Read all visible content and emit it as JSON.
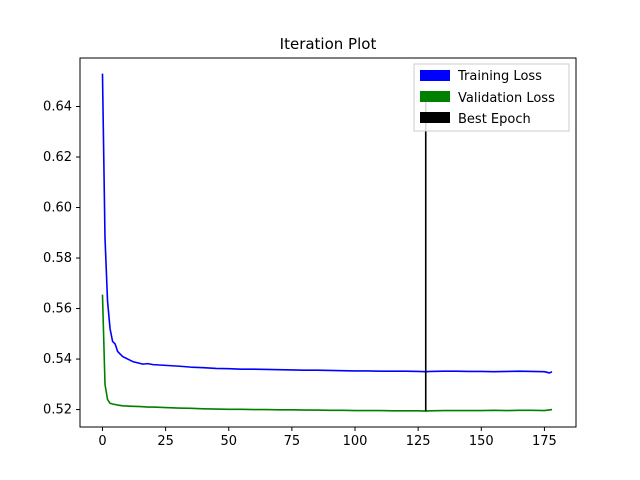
{
  "chart_data": {
    "type": "line",
    "title": "Iteration Plot",
    "xlabel": "",
    "ylabel": "",
    "xlim": [
      -8.9,
      187.5
    ],
    "ylim": [
      0.5131,
      0.6592
    ],
    "xticks": [
      0,
      25,
      50,
      75,
      100,
      125,
      150,
      175
    ],
    "yticks": [
      0.52,
      0.54,
      0.56,
      0.58,
      0.6,
      0.62,
      0.64
    ],
    "ytick_labels": [
      "0.52",
      "0.54",
      "0.56",
      "0.58",
      "0.60",
      "0.62",
      "0.64"
    ],
    "grid": false,
    "legend_position": "top-right",
    "series": [
      {
        "name": "Training Loss",
        "color": "#0000ff",
        "x": [
          0,
          1,
          2,
          3,
          4,
          5,
          6,
          7,
          8,
          10,
          12,
          14,
          16,
          18,
          20,
          25,
          30,
          35,
          40,
          45,
          50,
          55,
          60,
          65,
          70,
          75,
          80,
          85,
          90,
          95,
          100,
          105,
          110,
          115,
          120,
          125,
          128,
          130,
          135,
          140,
          145,
          150,
          155,
          160,
          165,
          170,
          175,
          177,
          178
        ],
        "y": [
          0.653,
          0.588,
          0.563,
          0.552,
          0.547,
          0.546,
          0.543,
          0.542,
          0.541,
          0.54,
          0.539,
          0.5385,
          0.538,
          0.5382,
          0.5378,
          0.5375,
          0.5372,
          0.5368,
          0.5366,
          0.5363,
          0.5362,
          0.536,
          0.536,
          0.5359,
          0.5358,
          0.5357,
          0.5356,
          0.5356,
          0.5355,
          0.5354,
          0.5353,
          0.5353,
          0.5352,
          0.5352,
          0.5352,
          0.5351,
          0.535,
          0.5351,
          0.5352,
          0.5352,
          0.5351,
          0.5351,
          0.535,
          0.5351,
          0.5352,
          0.5351,
          0.535,
          0.5345,
          0.535
        ]
      },
      {
        "name": "Validation Loss",
        "color": "#008000",
        "x": [
          0,
          1,
          2,
          3,
          4,
          5,
          6,
          8,
          10,
          12,
          15,
          18,
          20,
          25,
          30,
          35,
          40,
          45,
          50,
          55,
          60,
          65,
          70,
          75,
          80,
          85,
          90,
          95,
          100,
          105,
          110,
          115,
          120,
          125,
          128,
          130,
          135,
          140,
          145,
          150,
          155,
          160,
          165,
          170,
          175,
          178
        ],
        "y": [
          0.5655,
          0.53,
          0.524,
          0.5225,
          0.5222,
          0.522,
          0.5218,
          0.5215,
          0.5214,
          0.5213,
          0.5212,
          0.521,
          0.521,
          0.5208,
          0.5206,
          0.5205,
          0.5203,
          0.5202,
          0.5201,
          0.5201,
          0.52,
          0.52,
          0.5199,
          0.5199,
          0.5198,
          0.5198,
          0.5197,
          0.5197,
          0.5196,
          0.5196,
          0.5196,
          0.5195,
          0.5195,
          0.5195,
          0.5194,
          0.5195,
          0.5196,
          0.5196,
          0.5196,
          0.5196,
          0.5197,
          0.5196,
          0.5197,
          0.5197,
          0.5196,
          0.52
        ]
      },
      {
        "name": "Best Epoch",
        "color": "#000000",
        "x": [
          128,
          128
        ],
        "y": [
          0.5194,
          0.644
        ]
      }
    ]
  }
}
